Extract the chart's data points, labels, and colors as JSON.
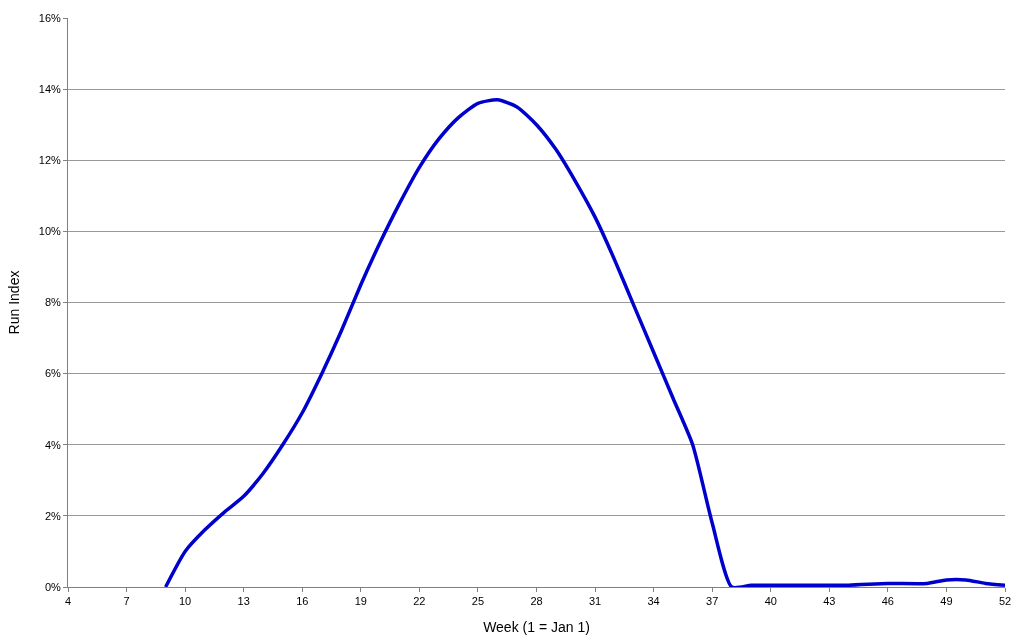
{
  "chart_data": {
    "type": "line",
    "xlabel": "Week (1 = Jan 1)",
    "ylabel": "Run Index",
    "x": [
      9,
      10,
      11,
      12,
      13,
      14,
      15,
      16,
      17,
      18,
      19,
      20,
      21,
      22,
      23,
      24,
      25,
      26,
      27,
      28,
      29,
      30,
      31,
      32,
      33,
      34,
      35,
      36,
      37,
      38,
      39,
      40,
      42,
      44,
      46,
      48,
      49,
      50,
      51,
      52
    ],
    "series": [
      {
        "color": "#0000cc",
        "values": [
          0,
          1.0,
          1.6,
          2.1,
          2.55,
          3.2,
          4.0,
          4.9,
          6.0,
          7.2,
          8.5,
          9.7,
          10.8,
          11.8,
          12.6,
          13.2,
          13.6,
          13.7,
          13.5,
          13.0,
          12.3,
          11.4,
          10.4,
          9.2,
          7.9,
          6.6,
          5.3,
          4.0,
          1.8,
          0,
          0.05,
          0.05,
          0.05,
          0.05,
          0.1,
          0.1,
          0.2,
          0.2,
          0.1,
          0.05
        ]
      }
    ],
    "xlim": [
      4,
      52
    ],
    "xticks": [
      4,
      7,
      10,
      13,
      16,
      19,
      22,
      25,
      28,
      31,
      34,
      37,
      40,
      43,
      46,
      49,
      52
    ],
    "ylim": [
      0,
      16
    ],
    "yticks": [
      {
        "value": 0,
        "label": "0%"
      },
      {
        "value": 2,
        "label": "2%"
      },
      {
        "value": 4,
        "label": "4%"
      },
      {
        "value": 6,
        "label": "6%"
      },
      {
        "value": 8,
        "label": "8%"
      },
      {
        "value": 10,
        "label": "10%"
      },
      {
        "value": 12,
        "label": "12%"
      },
      {
        "value": 14,
        "label": "14%"
      },
      {
        "value": 16,
        "label": "16%"
      }
    ],
    "grid": "y",
    "marker": "none",
    "line_style": "solid"
  }
}
